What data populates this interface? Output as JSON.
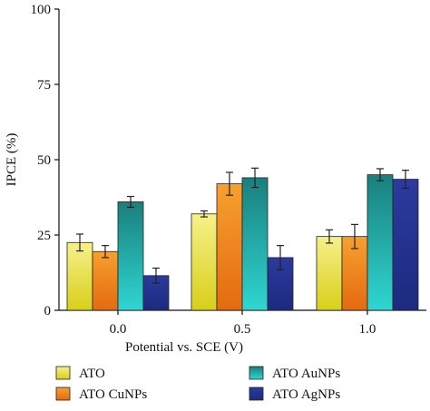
{
  "chart_data": {
    "type": "bar",
    "title": "",
    "xlabel": "Potential vs. SCE (V)",
    "ylabel": "IPCE (%)",
    "ylim": [
      0,
      100
    ],
    "yticks": [
      0,
      25,
      50,
      75,
      100
    ],
    "categories": [
      "0.0",
      "0.5",
      "1.0"
    ],
    "legend_position": "bottom",
    "series": [
      {
        "name": "ATO",
        "values": [
          22.5,
          32.0,
          24.5
        ],
        "errors": [
          2.8,
          1.0,
          2.2
        ],
        "color_top": "#f7f08a",
        "color_bottom": "#d8cf1a"
      },
      {
        "name": "ATO CuNPs",
        "values": [
          19.5,
          42.0,
          24.5
        ],
        "errors": [
          2.0,
          3.8,
          4.0
        ],
        "color_top": "#f7a030",
        "color_bottom": "#e46a10"
      },
      {
        "name": "ATO AuNPs",
        "values": [
          36.0,
          44.0,
          45.0
        ],
        "errors": [
          1.8,
          3.2,
          2.0
        ],
        "color_top": "#1a7f7d",
        "color_bottom": "#2fd6d2"
      },
      {
        "name": "ATO AgNPs",
        "values": [
          11.5,
          17.5,
          43.5
        ],
        "errors": [
          2.5,
          4.0,
          3.0
        ],
        "color_top": "#2c3a9c",
        "color_bottom": "#1d2a80"
      }
    ]
  }
}
